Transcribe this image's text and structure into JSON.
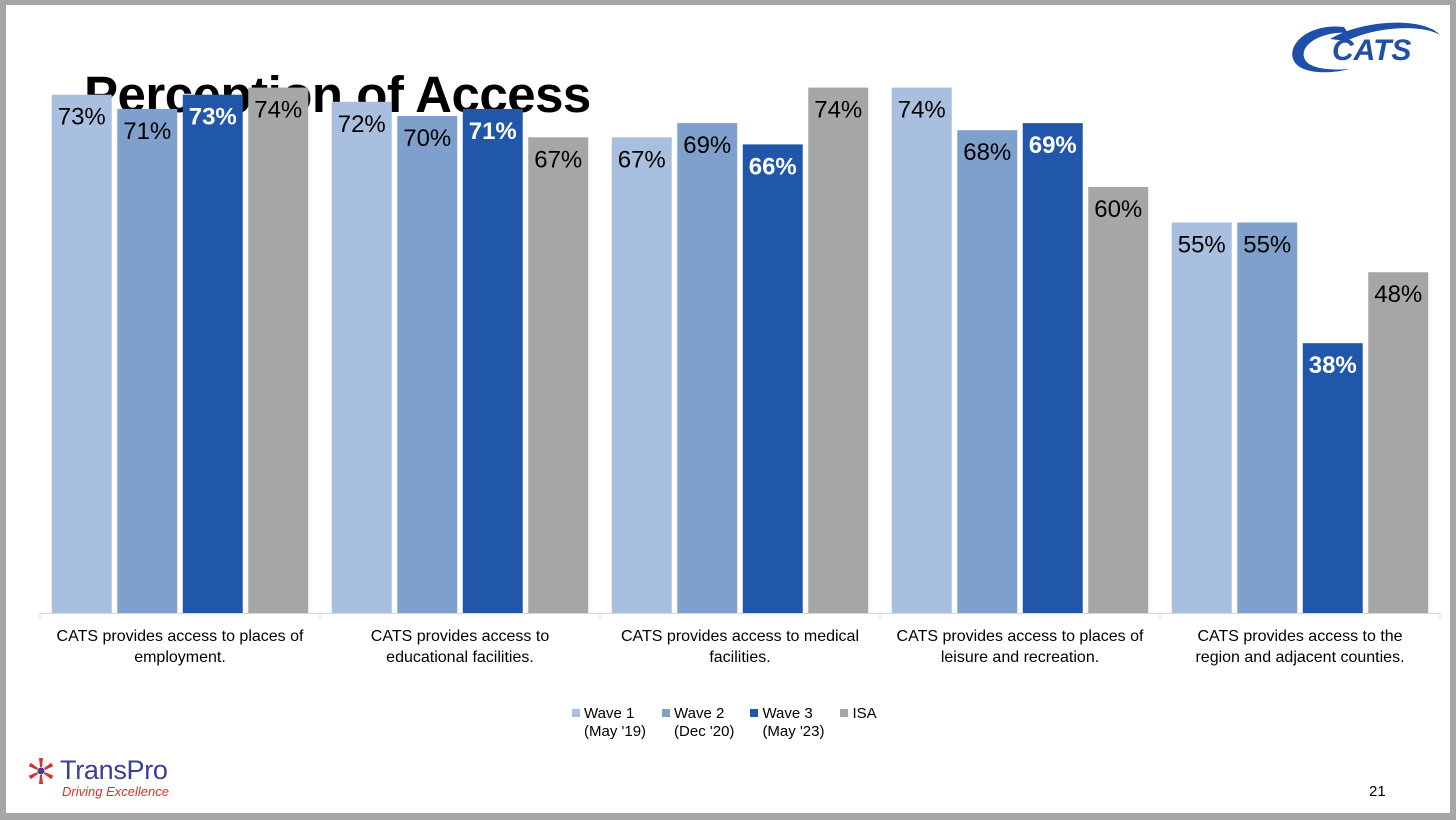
{
  "slide": {
    "title": "Perception of Access",
    "page_number": "21",
    "logo_text": "CATS",
    "footer_logo": {
      "name": "TransPro",
      "tagline": "Driving Excellence"
    }
  },
  "colors": {
    "wave1": "#a9bfdf",
    "wave2": "#7f9fcd",
    "wave3": "#2157aa",
    "isa": "#a6a6a6",
    "brand_blue": "#1f4fa8",
    "transpro_blue": "#3a3f8f",
    "transpro_red": "#d8322b"
  },
  "chart_data": {
    "type": "bar",
    "title": "Perception of Access",
    "xlabel": "",
    "ylabel": "",
    "ylim": [
      0,
      80
    ],
    "grid": false,
    "legend_position": "bottom",
    "categories": [
      "CATS provides access to places of employment.",
      "CATS provides access to educational facilities.",
      "CATS provides access to medical facilities.",
      "CATS provides access to places of leisure and recreation.",
      "CATS provides access to the region and adjacent counties."
    ],
    "category_lines": [
      [
        "CATS provides access to places of",
        "employment."
      ],
      [
        "CATS provides access to",
        "educational facilities."
      ],
      [
        "CATS provides access to medical",
        "facilities."
      ],
      [
        "CATS provides access to places of",
        "leisure and recreation."
      ],
      [
        "CATS provides access to the",
        "region and adjacent counties."
      ]
    ],
    "series": [
      {
        "key": "wave1",
        "name": "Wave 1 (May '19)",
        "legend": "Wave 1\n(May '19)",
        "values": [
          73,
          72,
          67,
          74,
          55
        ],
        "labels": [
          "73%",
          "72%",
          "67%",
          "74%",
          "55%"
        ],
        "bold": false
      },
      {
        "key": "wave2",
        "name": "Wave 2 (Dec '20)",
        "legend": "Wave 2\n(Dec '20)",
        "values": [
          71,
          70,
          69,
          68,
          55
        ],
        "labels": [
          "71%",
          "70%",
          "69%",
          "68%",
          "55%"
        ],
        "bold": false
      },
      {
        "key": "wave3",
        "name": "Wave 3 (May '23)",
        "legend": "Wave 3\n(May '23)",
        "values": [
          73,
          71,
          66,
          69,
          38
        ],
        "labels": [
          "73%",
          "71%",
          "66%",
          "69%",
          "38%"
        ],
        "bold": true
      },
      {
        "key": "isa",
        "name": "ISA",
        "legend": "ISA",
        "values": [
          74,
          67,
          74,
          60,
          48
        ],
        "labels": [
          "74%",
          "67%",
          "74%",
          "60%",
          "48%"
        ],
        "bold": false
      }
    ]
  }
}
